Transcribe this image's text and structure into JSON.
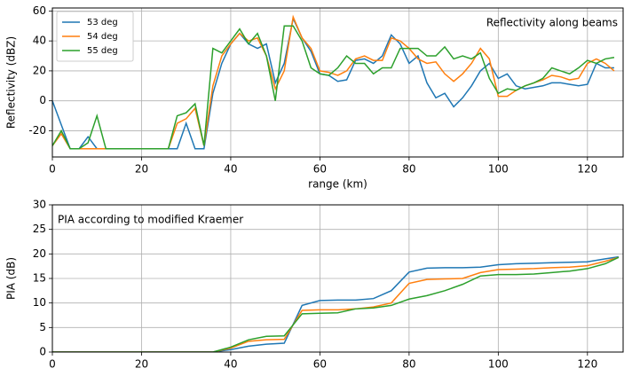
{
  "chart_data": [
    {
      "type": "line",
      "annotation": "Reflectivity along beams",
      "xlabel": "range (km)",
      "ylabel": "Reflectivity (dBZ)",
      "x": [
        0,
        2,
        4,
        6,
        8,
        10,
        12,
        14,
        16,
        18,
        20,
        22,
        24,
        26,
        28,
        30,
        32,
        34,
        36,
        38,
        40,
        42,
        44,
        46,
        48,
        50,
        52,
        54,
        56,
        58,
        60,
        62,
        64,
        66,
        68,
        70,
        72,
        74,
        76,
        78,
        80,
        82,
        84,
        86,
        88,
        90,
        92,
        94,
        96,
        98,
        100,
        102,
        104,
        106,
        108,
        110,
        112,
        114,
        116,
        118,
        120,
        122,
        124,
        126
      ],
      "series": [
        {
          "name": "53 deg",
          "color": "#1f77b4",
          "values": [
            0,
            -16,
            -32,
            -32,
            -24,
            -32,
            -32,
            -32,
            -32,
            -32,
            -32,
            -32,
            -32,
            -32,
            -32,
            -15,
            -32,
            -32,
            5,
            25,
            38,
            45,
            38,
            35,
            38,
            12,
            25,
            55,
            42,
            33,
            18,
            17,
            13,
            14,
            27,
            28,
            25,
            30,
            44,
            38,
            25,
            30,
            12,
            2,
            5,
            -4,
            2,
            10,
            20,
            25,
            15,
            18,
            10,
            8,
            9,
            10,
            12,
            12,
            11,
            10,
            11,
            25,
            22,
            22
          ]
        },
        {
          "name": "54 deg",
          "color": "#ff7f0e",
          "values": [
            -30,
            -22,
            -32,
            -32,
            -32,
            -32,
            -32,
            -32,
            -32,
            -32,
            -32,
            -32,
            -32,
            -32,
            -15,
            -12,
            -5,
            -30,
            10,
            30,
            38,
            45,
            40,
            42,
            30,
            8,
            20,
            56,
            42,
            35,
            20,
            19,
            17,
            20,
            28,
            30,
            27,
            27,
            42,
            40,
            35,
            28,
            25,
            26,
            18,
            13,
            18,
            25,
            35,
            28,
            3,
            3,
            7,
            10,
            12,
            14,
            17,
            16,
            14,
            15,
            25,
            28,
            25,
            20
          ]
        },
        {
          "name": "55 deg",
          "color": "#2ca02c",
          "values": [
            -30,
            -20,
            -32,
            -32,
            -28,
            -10,
            -32,
            -32,
            -32,
            -32,
            -32,
            -32,
            -32,
            -32,
            -10,
            -8,
            -2,
            -30,
            35,
            32,
            40,
            48,
            38,
            45,
            30,
            0,
            50,
            50,
            40,
            22,
            18,
            17,
            22,
            30,
            25,
            25,
            18,
            22,
            22,
            35,
            35,
            35,
            30,
            30,
            36,
            28,
            30,
            28,
            32,
            15,
            5,
            8,
            7,
            10,
            12,
            15,
            22,
            20,
            18,
            22,
            27,
            25,
            28,
            29
          ]
        }
      ],
      "xlim": [
        0,
        128
      ],
      "ylim": [
        -37.5,
        62
      ],
      "xticks": [
        0,
        20,
        40,
        60,
        80,
        100,
        120
      ],
      "yticks": [
        -20,
        0,
        20,
        40,
        60
      ],
      "grid": true,
      "legend": "upper left"
    },
    {
      "type": "line",
      "annotation": "PIA according to modified Kraemer",
      "ylabel": "PIA (dB)",
      "x": [
        0,
        4,
        8,
        12,
        16,
        20,
        24,
        28,
        32,
        36,
        40,
        44,
        48,
        52,
        56,
        60,
        64,
        68,
        72,
        76,
        80,
        84,
        88,
        92,
        96,
        100,
        104,
        108,
        112,
        116,
        120,
        124,
        127
      ],
      "series": [
        {
          "color": "#1f77b4",
          "values": [
            0,
            0,
            0,
            0,
            0,
            0,
            0,
            0,
            0,
            0,
            0.5,
            1.2,
            1.6,
            1.8,
            9.5,
            10.5,
            10.6,
            10.6,
            10.9,
            12.5,
            16.3,
            17.1,
            17.2,
            17.2,
            17.3,
            17.8,
            18.0,
            18.1,
            18.2,
            18.3,
            18.4,
            19.0,
            19.4
          ]
        },
        {
          "color": "#ff7f0e",
          "values": [
            0,
            0,
            0,
            0,
            0,
            0,
            0,
            0,
            0,
            0,
            0.8,
            2.2,
            2.5,
            2.6,
            8.5,
            8.6,
            8.6,
            8.8,
            9.2,
            10,
            14,
            14.8,
            14.9,
            15,
            16.2,
            16.8,
            16.9,
            17,
            17.2,
            17.3,
            17.6,
            18.5,
            19.3
          ]
        },
        {
          "color": "#2ca02c",
          "values": [
            0,
            0,
            0,
            0,
            0,
            0,
            0,
            0,
            0,
            0,
            1,
            2.5,
            3.2,
            3.3,
            7.8,
            7.9,
            8,
            8.8,
            9,
            9.5,
            10.8,
            11.5,
            12.5,
            13.8,
            15.5,
            15.8,
            15.8,
            15.9,
            16.2,
            16.5,
            17,
            18,
            19.3
          ]
        }
      ],
      "xlim": [
        0,
        128
      ],
      "ylim": [
        0,
        30
      ],
      "xticks": [
        0,
        20,
        40,
        60,
        80,
        100,
        120
      ],
      "yticks": [
        0,
        5,
        10,
        15,
        20,
        25,
        30
      ],
      "grid": true
    }
  ]
}
